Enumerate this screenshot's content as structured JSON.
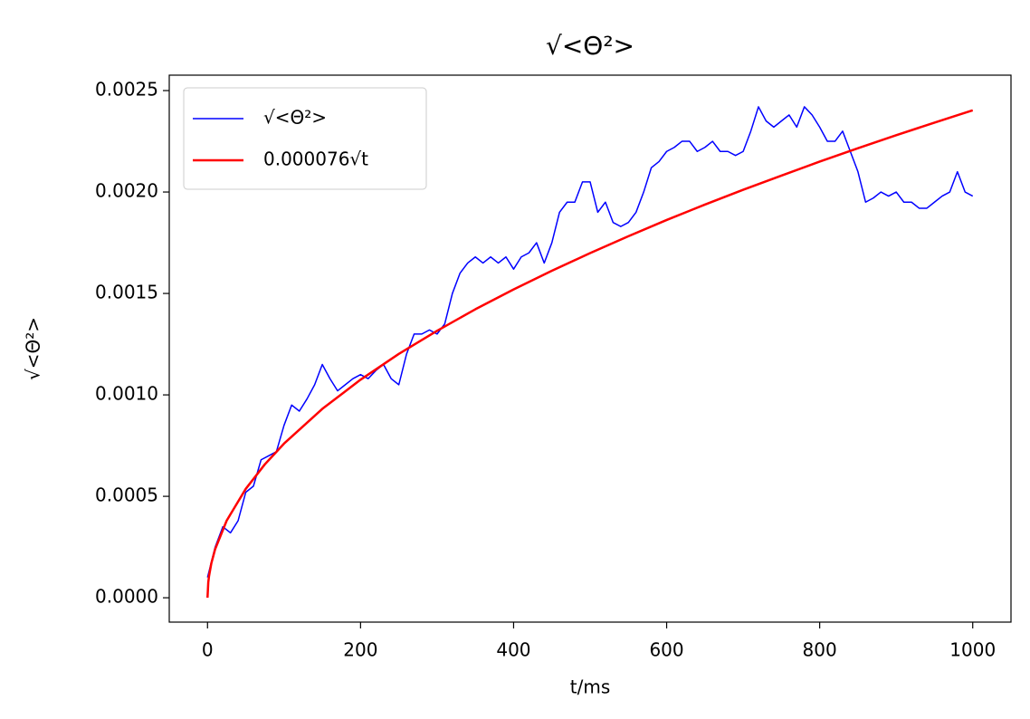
{
  "chart_data": {
    "type": "line",
    "title": "√<Θ²>",
    "xlabel": "t/ms",
    "ylabel": "√<Θ²>",
    "xlim": [
      -50,
      1050
    ],
    "ylim": [
      -0.00012,
      0.002576
    ],
    "xticks": [
      0,
      200,
      400,
      600,
      800,
      1000
    ],
    "yticks": [
      {
        "value": 0,
        "label": "0.0000"
      },
      {
        "value": 0.0005,
        "label": "0.0005"
      },
      {
        "value": 0.001,
        "label": "0.0010"
      },
      {
        "value": 0.0015,
        "label": "0.0015"
      },
      {
        "value": 0.002,
        "label": "0.0020"
      },
      {
        "value": 0.0025,
        "label": "0.0025"
      }
    ],
    "grid": false,
    "legend": "upper left",
    "title_color": "#ff0000",
    "series": [
      {
        "name": "√<Θ²>",
        "color": "#0000ff",
        "width": 1.5,
        "x": [
          0,
          10,
          20,
          30,
          40,
          50,
          60,
          70,
          80,
          90,
          100,
          110,
          120,
          130,
          140,
          150,
          160,
          170,
          180,
          190,
          200,
          210,
          220,
          230,
          240,
          250,
          260,
          270,
          280,
          290,
          300,
          310,
          320,
          330,
          340,
          350,
          360,
          370,
          380,
          390,
          400,
          410,
          420,
          430,
          440,
          450,
          460,
          470,
          480,
          490,
          500,
          510,
          520,
          530,
          540,
          550,
          560,
          570,
          580,
          590,
          600,
          610,
          620,
          630,
          640,
          650,
          660,
          670,
          680,
          690,
          700,
          710,
          720,
          730,
          740,
          750,
          760,
          770,
          780,
          790,
          800,
          810,
          820,
          830,
          840,
          850,
          860,
          870,
          880,
          890,
          900,
          910,
          920,
          930,
          940,
          950,
          960,
          970,
          980,
          990,
          1000
        ],
        "values": [
          0.0001,
          0.00025,
          0.00035,
          0.00032,
          0.00038,
          0.00052,
          0.00055,
          0.00068,
          0.0007,
          0.00072,
          0.00085,
          0.00095,
          0.00092,
          0.00098,
          0.00105,
          0.00115,
          0.00108,
          0.00102,
          0.00105,
          0.00108,
          0.0011,
          0.00108,
          0.00112,
          0.00115,
          0.00108,
          0.00105,
          0.0012,
          0.0013,
          0.0013,
          0.00132,
          0.0013,
          0.00135,
          0.0015,
          0.0016,
          0.00165,
          0.00168,
          0.00165,
          0.00168,
          0.00165,
          0.00168,
          0.00162,
          0.00168,
          0.0017,
          0.00175,
          0.00165,
          0.00175,
          0.0019,
          0.00195,
          0.00195,
          0.00205,
          0.00205,
          0.0019,
          0.00195,
          0.00185,
          0.00183,
          0.00185,
          0.0019,
          0.002,
          0.00212,
          0.00215,
          0.0022,
          0.00222,
          0.00225,
          0.00225,
          0.0022,
          0.00222,
          0.00225,
          0.0022,
          0.0022,
          0.00218,
          0.0022,
          0.0023,
          0.00242,
          0.00235,
          0.00232,
          0.00235,
          0.00238,
          0.00232,
          0.00242,
          0.00238,
          0.00232,
          0.00225,
          0.00225,
          0.0023,
          0.0022,
          0.0021,
          0.00195,
          0.00197,
          0.002,
          0.00198,
          0.002,
          0.00195,
          0.00195,
          0.00192,
          0.00192,
          0.00195,
          0.00198,
          0.002,
          0.0021,
          0.002,
          0.00198
        ]
      },
      {
        "name": "0.000076√t",
        "color": "#ff0000",
        "width": 2.5,
        "x": [
          0,
          1,
          2,
          5,
          10,
          25,
          50,
          75,
          100,
          150,
          200,
          250,
          300,
          350,
          400,
          450,
          500,
          550,
          600,
          650,
          700,
          750,
          800,
          850,
          900,
          950,
          1000
        ],
        "values": [
          0,
          7.6e-05,
          0.000107,
          0.00017,
          0.00024,
          0.00038,
          0.000537,
          0.000658,
          0.00076,
          0.000931,
          0.001075,
          0.001202,
          0.001316,
          0.001422,
          0.00152,
          0.001612,
          0.001699,
          0.001782,
          0.001862,
          0.001938,
          0.002011,
          0.002081,
          0.00215,
          0.002216,
          0.00228,
          0.002342,
          0.002403
        ]
      }
    ]
  }
}
